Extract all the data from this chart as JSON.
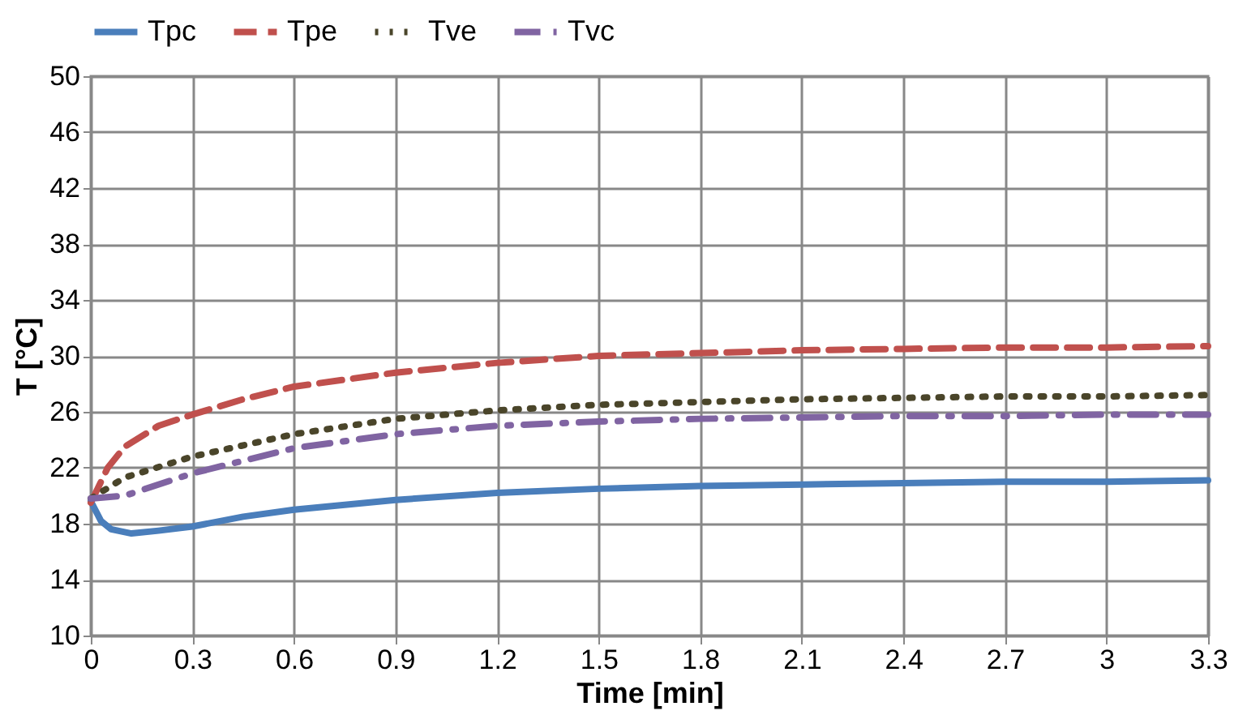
{
  "chart_data": {
    "type": "line",
    "xlabel": "Time [min]",
    "ylabel": "T [°C]",
    "xlim": [
      0,
      3.3
    ],
    "xticks": [
      0,
      0.3,
      0.6,
      0.9,
      1.2,
      1.5,
      1.8,
      2.1,
      2.4,
      2.7,
      3,
      3.3
    ],
    "ylim": [
      10,
      50
    ],
    "yticks": [
      10,
      14,
      18,
      22,
      26,
      30,
      34,
      38,
      42,
      46,
      50
    ],
    "grid": true,
    "legend": "top",
    "marker": "none",
    "series": [
      {
        "name": "Tpc",
        "color": "#4a7ebb",
        "line_style": "solid",
        "x": [
          0,
          0.03,
          0.06,
          0.12,
          0.2,
          0.3,
          0.45,
          0.6,
          0.9,
          1.2,
          1.5,
          1.8,
          2.1,
          2.4,
          2.7,
          3.0,
          3.3
        ],
        "values": [
          19.6,
          18.2,
          17.6,
          17.3,
          17.5,
          17.8,
          18.5,
          19.0,
          19.7,
          20.2,
          20.5,
          20.7,
          20.8,
          20.9,
          21.0,
          21.0,
          21.1
        ]
      },
      {
        "name": "Tpe",
        "color": "#c0504d",
        "line_style": "dashed",
        "x": [
          0,
          0.05,
          0.1,
          0.2,
          0.3,
          0.45,
          0.6,
          0.9,
          1.2,
          1.5,
          1.8,
          2.1,
          2.4,
          2.7,
          3.0,
          3.3
        ],
        "values": [
          19.5,
          22.0,
          23.5,
          25.0,
          25.8,
          26.9,
          27.8,
          28.8,
          29.5,
          30.0,
          30.2,
          30.4,
          30.5,
          30.6,
          30.6,
          30.7
        ]
      },
      {
        "name": "Tve",
        "color": "#4a452a",
        "line_style": "dotted",
        "x": [
          0,
          0.1,
          0.3,
          0.6,
          0.9,
          1.2,
          1.5,
          1.8,
          2.1,
          2.4,
          2.7,
          3.0,
          3.3
        ],
        "values": [
          19.8,
          21.3,
          22.8,
          24.4,
          25.5,
          26.1,
          26.5,
          26.7,
          26.9,
          27.0,
          27.1,
          27.1,
          27.2
        ]
      },
      {
        "name": "Tvc",
        "color": "#8064a2",
        "line_style": "dashdot",
        "x": [
          0,
          0.1,
          0.3,
          0.6,
          0.9,
          1.2,
          1.5,
          1.8,
          2.1,
          2.4,
          2.7,
          3.0,
          3.3
        ],
        "values": [
          19.8,
          20.0,
          21.6,
          23.4,
          24.4,
          25.0,
          25.3,
          25.5,
          25.6,
          25.7,
          25.7,
          25.8,
          25.8
        ]
      }
    ]
  }
}
